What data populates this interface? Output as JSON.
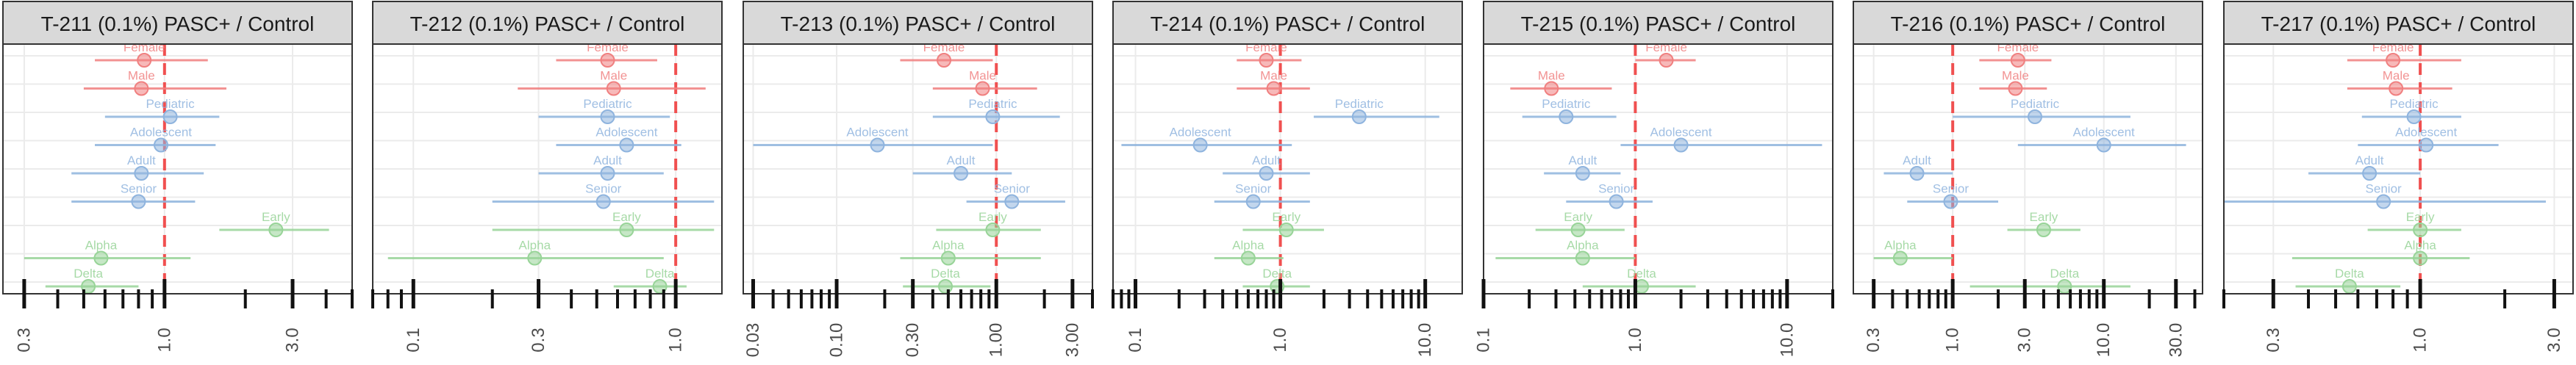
{
  "chart_data": {
    "type": "forest",
    "x_scale": "log",
    "reference_line": 1,
    "colors": {
      "sex": "#f08080",
      "age": "#8fb4de",
      "variant": "#98d498",
      "reference": "#f05050",
      "strip": "#d9d9d9",
      "grid": "#ebebeb"
    },
    "rows": [
      "Female",
      "Male",
      "Pediatric",
      "Adolescent",
      "Adult",
      "Senior",
      "Early",
      "Alpha",
      "Delta"
    ],
    "row_groups": [
      "sex",
      "sex",
      "age",
      "age",
      "age",
      "age",
      "variant",
      "variant",
      "variant"
    ],
    "panels": [
      {
        "title": "T-211 (0.1%) PASC+ / Control",
        "xlim": [
          0.25,
          5.0
        ],
        "ticks": [
          0.3,
          1.0,
          3.0
        ],
        "tick_labels": [
          "0.3",
          "1.0",
          "3.0"
        ],
        "estimates": [
          {
            "label": "Female",
            "est": 0.84,
            "lo": 0.55,
            "hi": 1.45
          },
          {
            "label": "Male",
            "est": 0.82,
            "lo": 0.5,
            "hi": 1.7
          },
          {
            "label": "Pediatric",
            "est": 1.05,
            "lo": 0.6,
            "hi": 1.6
          },
          {
            "label": "Adolescent",
            "est": 0.97,
            "lo": 0.55,
            "hi": 1.55
          },
          {
            "label": "Adult",
            "est": 0.82,
            "lo": 0.45,
            "hi": 1.4
          },
          {
            "label": "Senior",
            "est": 0.8,
            "lo": 0.45,
            "hi": 1.3
          },
          {
            "label": "Early",
            "est": 2.6,
            "lo": 1.6,
            "hi": 4.1
          },
          {
            "label": "Alpha",
            "est": 0.58,
            "lo": 0.3,
            "hi": 1.25
          },
          {
            "label": "Delta",
            "est": 0.52,
            "lo": 0.36,
            "hi": 0.8
          }
        ]
      },
      {
        "title": "T-212 (0.1%) PASC+ / Control",
        "xlim": [
          0.07,
          1.5
        ],
        "ticks": [
          0.1,
          0.3,
          1.0
        ],
        "tick_labels": [
          "0.1",
          "0.3",
          "1.0"
        ],
        "estimates": [
          {
            "label": "Female",
            "est": 0.55,
            "lo": 0.35,
            "hi": 0.85
          },
          {
            "label": "Male",
            "est": 0.58,
            "lo": 0.25,
            "hi": 1.3
          },
          {
            "label": "Pediatric",
            "est": 0.55,
            "lo": 0.3,
            "hi": 0.95
          },
          {
            "label": "Adolescent",
            "est": 0.65,
            "lo": 0.35,
            "hi": 1.05
          },
          {
            "label": "Adult",
            "est": 0.55,
            "lo": 0.3,
            "hi": 0.9
          },
          {
            "label": "Senior",
            "est": 0.53,
            "lo": 0.2,
            "hi": 1.4
          },
          {
            "label": "Early",
            "est": 0.65,
            "lo": 0.2,
            "hi": 1.4
          },
          {
            "label": "Alpha",
            "est": 0.29,
            "lo": 0.08,
            "hi": 0.9
          },
          {
            "label": "Delta",
            "est": 0.87,
            "lo": 0.58,
            "hi": 1.1
          }
        ]
      },
      {
        "title": "T-213 (0.1%) PASC+ / Control",
        "xlim": [
          0.026,
          4.0
        ],
        "ticks": [
          0.03,
          0.1,
          0.3,
          1.0,
          3.0
        ],
        "tick_labels": [
          "0.03",
          "0.10",
          "0.30",
          "1.00",
          "3.00"
        ],
        "estimates": [
          {
            "label": "Female",
            "est": 0.47,
            "lo": 0.25,
            "hi": 0.95
          },
          {
            "label": "Male",
            "est": 0.82,
            "lo": 0.4,
            "hi": 1.8
          },
          {
            "label": "Pediatric",
            "est": 0.95,
            "lo": 0.4,
            "hi": 2.5
          },
          {
            "label": "Adolescent",
            "est": 0.18,
            "lo": 0.03,
            "hi": 0.95
          },
          {
            "label": "Adult",
            "est": 0.6,
            "lo": 0.3,
            "hi": 1.25
          },
          {
            "label": "Senior",
            "est": 1.25,
            "lo": 0.65,
            "hi": 2.7
          },
          {
            "label": "Early",
            "est": 0.95,
            "lo": 0.42,
            "hi": 1.9
          },
          {
            "label": "Alpha",
            "est": 0.5,
            "lo": 0.25,
            "hi": 1.9
          },
          {
            "label": "Delta",
            "est": 0.48,
            "lo": 0.26,
            "hi": 0.92
          }
        ]
      },
      {
        "title": "T-214 (0.1%) PASC+ / Control",
        "xlim": [
          0.07,
          18.0
        ],
        "ticks": [
          0.1,
          1.0,
          10.0
        ],
        "tick_labels": [
          "0.1",
          "1.0",
          "10.0"
        ],
        "estimates": [
          {
            "label": "Female",
            "est": 0.8,
            "lo": 0.5,
            "hi": 1.4
          },
          {
            "label": "Male",
            "est": 0.9,
            "lo": 0.5,
            "hi": 1.6
          },
          {
            "label": "Pediatric",
            "est": 3.5,
            "lo": 1.7,
            "hi": 12.5
          },
          {
            "label": "Adolescent",
            "est": 0.28,
            "lo": 0.08,
            "hi": 1.2
          },
          {
            "label": "Adult",
            "est": 0.8,
            "lo": 0.4,
            "hi": 1.6
          },
          {
            "label": "Senior",
            "est": 0.65,
            "lo": 0.35,
            "hi": 1.6
          },
          {
            "label": "Early",
            "est": 1.1,
            "lo": 0.55,
            "hi": 2.0
          },
          {
            "label": "Alpha",
            "est": 0.6,
            "lo": 0.35,
            "hi": 1.05
          },
          {
            "label": "Delta",
            "est": 0.95,
            "lo": 0.55,
            "hi": 1.6
          }
        ]
      },
      {
        "title": "T-215 (0.1%) PASC+ / Control",
        "xlim": [
          0.1,
          20.0
        ],
        "ticks": [
          0.1,
          1.0,
          10.0
        ],
        "tick_labels": [
          "0.1",
          "1.0",
          "10.0"
        ],
        "estimates": [
          {
            "label": "Female",
            "est": 1.6,
            "lo": 1.0,
            "hi": 2.5
          },
          {
            "label": "Male",
            "est": 0.28,
            "lo": 0.15,
            "hi": 0.7
          },
          {
            "label": "Pediatric",
            "est": 0.35,
            "lo": 0.18,
            "hi": 0.75
          },
          {
            "label": "Adolescent",
            "est": 2.0,
            "lo": 0.8,
            "hi": 17.0
          },
          {
            "label": "Adult",
            "est": 0.45,
            "lo": 0.25,
            "hi": 0.8
          },
          {
            "label": "Senior",
            "est": 0.75,
            "lo": 0.35,
            "hi": 1.3
          },
          {
            "label": "Early",
            "est": 0.42,
            "lo": 0.22,
            "hi": 0.85
          },
          {
            "label": "Alpha",
            "est": 0.45,
            "lo": 0.12,
            "hi": 1.0
          },
          {
            "label": "Delta",
            "est": 1.1,
            "lo": 0.45,
            "hi": 2.5
          }
        ]
      },
      {
        "title": "T-216 (0.1%) PASC+ / Control",
        "xlim": [
          0.22,
          45.0
        ],
        "ticks": [
          0.3,
          1.0,
          3.0,
          10.0,
          30.0
        ],
        "tick_labels": [
          "0.3",
          "1.0",
          "3.0",
          "10.0",
          "30.0"
        ],
        "estimates": [
          {
            "label": "Female",
            "est": 2.7,
            "lo": 1.5,
            "hi": 4.5
          },
          {
            "label": "Male",
            "est": 2.6,
            "lo": 1.5,
            "hi": 4.2
          },
          {
            "label": "Pediatric",
            "est": 3.5,
            "lo": 1.0,
            "hi": 15.0
          },
          {
            "label": "Adolescent",
            "est": 10.0,
            "lo": 2.7,
            "hi": 35.0
          },
          {
            "label": "Adult",
            "est": 0.58,
            "lo": 0.35,
            "hi": 1.0
          },
          {
            "label": "Senior",
            "est": 0.97,
            "lo": 0.5,
            "hi": 2.0
          },
          {
            "label": "Early",
            "est": 4.0,
            "lo": 2.3,
            "hi": 7.0
          },
          {
            "label": "Alpha",
            "est": 0.45,
            "lo": 0.3,
            "hi": 1.0
          },
          {
            "label": "Delta",
            "est": 5.5,
            "lo": 1.3,
            "hi": 15.0
          }
        ]
      },
      {
        "title": "T-217 (0.1%) PASC+ / Control",
        "xlim": [
          0.2,
          3.5
        ],
        "ticks": [
          0.3,
          1.0,
          3.0
        ],
        "tick_labels": [
          "0.3",
          "1.0",
          "3.0"
        ],
        "estimates": [
          {
            "label": "Female",
            "est": 0.8,
            "lo": 0.55,
            "hi": 1.4
          },
          {
            "label": "Male",
            "est": 0.82,
            "lo": 0.55,
            "hi": 1.3
          },
          {
            "label": "Pediatric",
            "est": 0.95,
            "lo": 0.62,
            "hi": 1.4
          },
          {
            "label": "Adolescent",
            "est": 1.05,
            "lo": 0.6,
            "hi": 1.9
          },
          {
            "label": "Adult",
            "est": 0.66,
            "lo": 0.4,
            "hi": 1.0
          },
          {
            "label": "Senior",
            "est": 0.74,
            "lo": 0.2,
            "hi": 2.8
          },
          {
            "label": "Early",
            "est": 1.0,
            "lo": 0.65,
            "hi": 1.4
          },
          {
            "label": "Alpha",
            "est": 1.0,
            "lo": 0.35,
            "hi": 1.5
          },
          {
            "label": "Delta",
            "est": 0.56,
            "lo": 0.36,
            "hi": 0.85
          }
        ]
      }
    ]
  }
}
